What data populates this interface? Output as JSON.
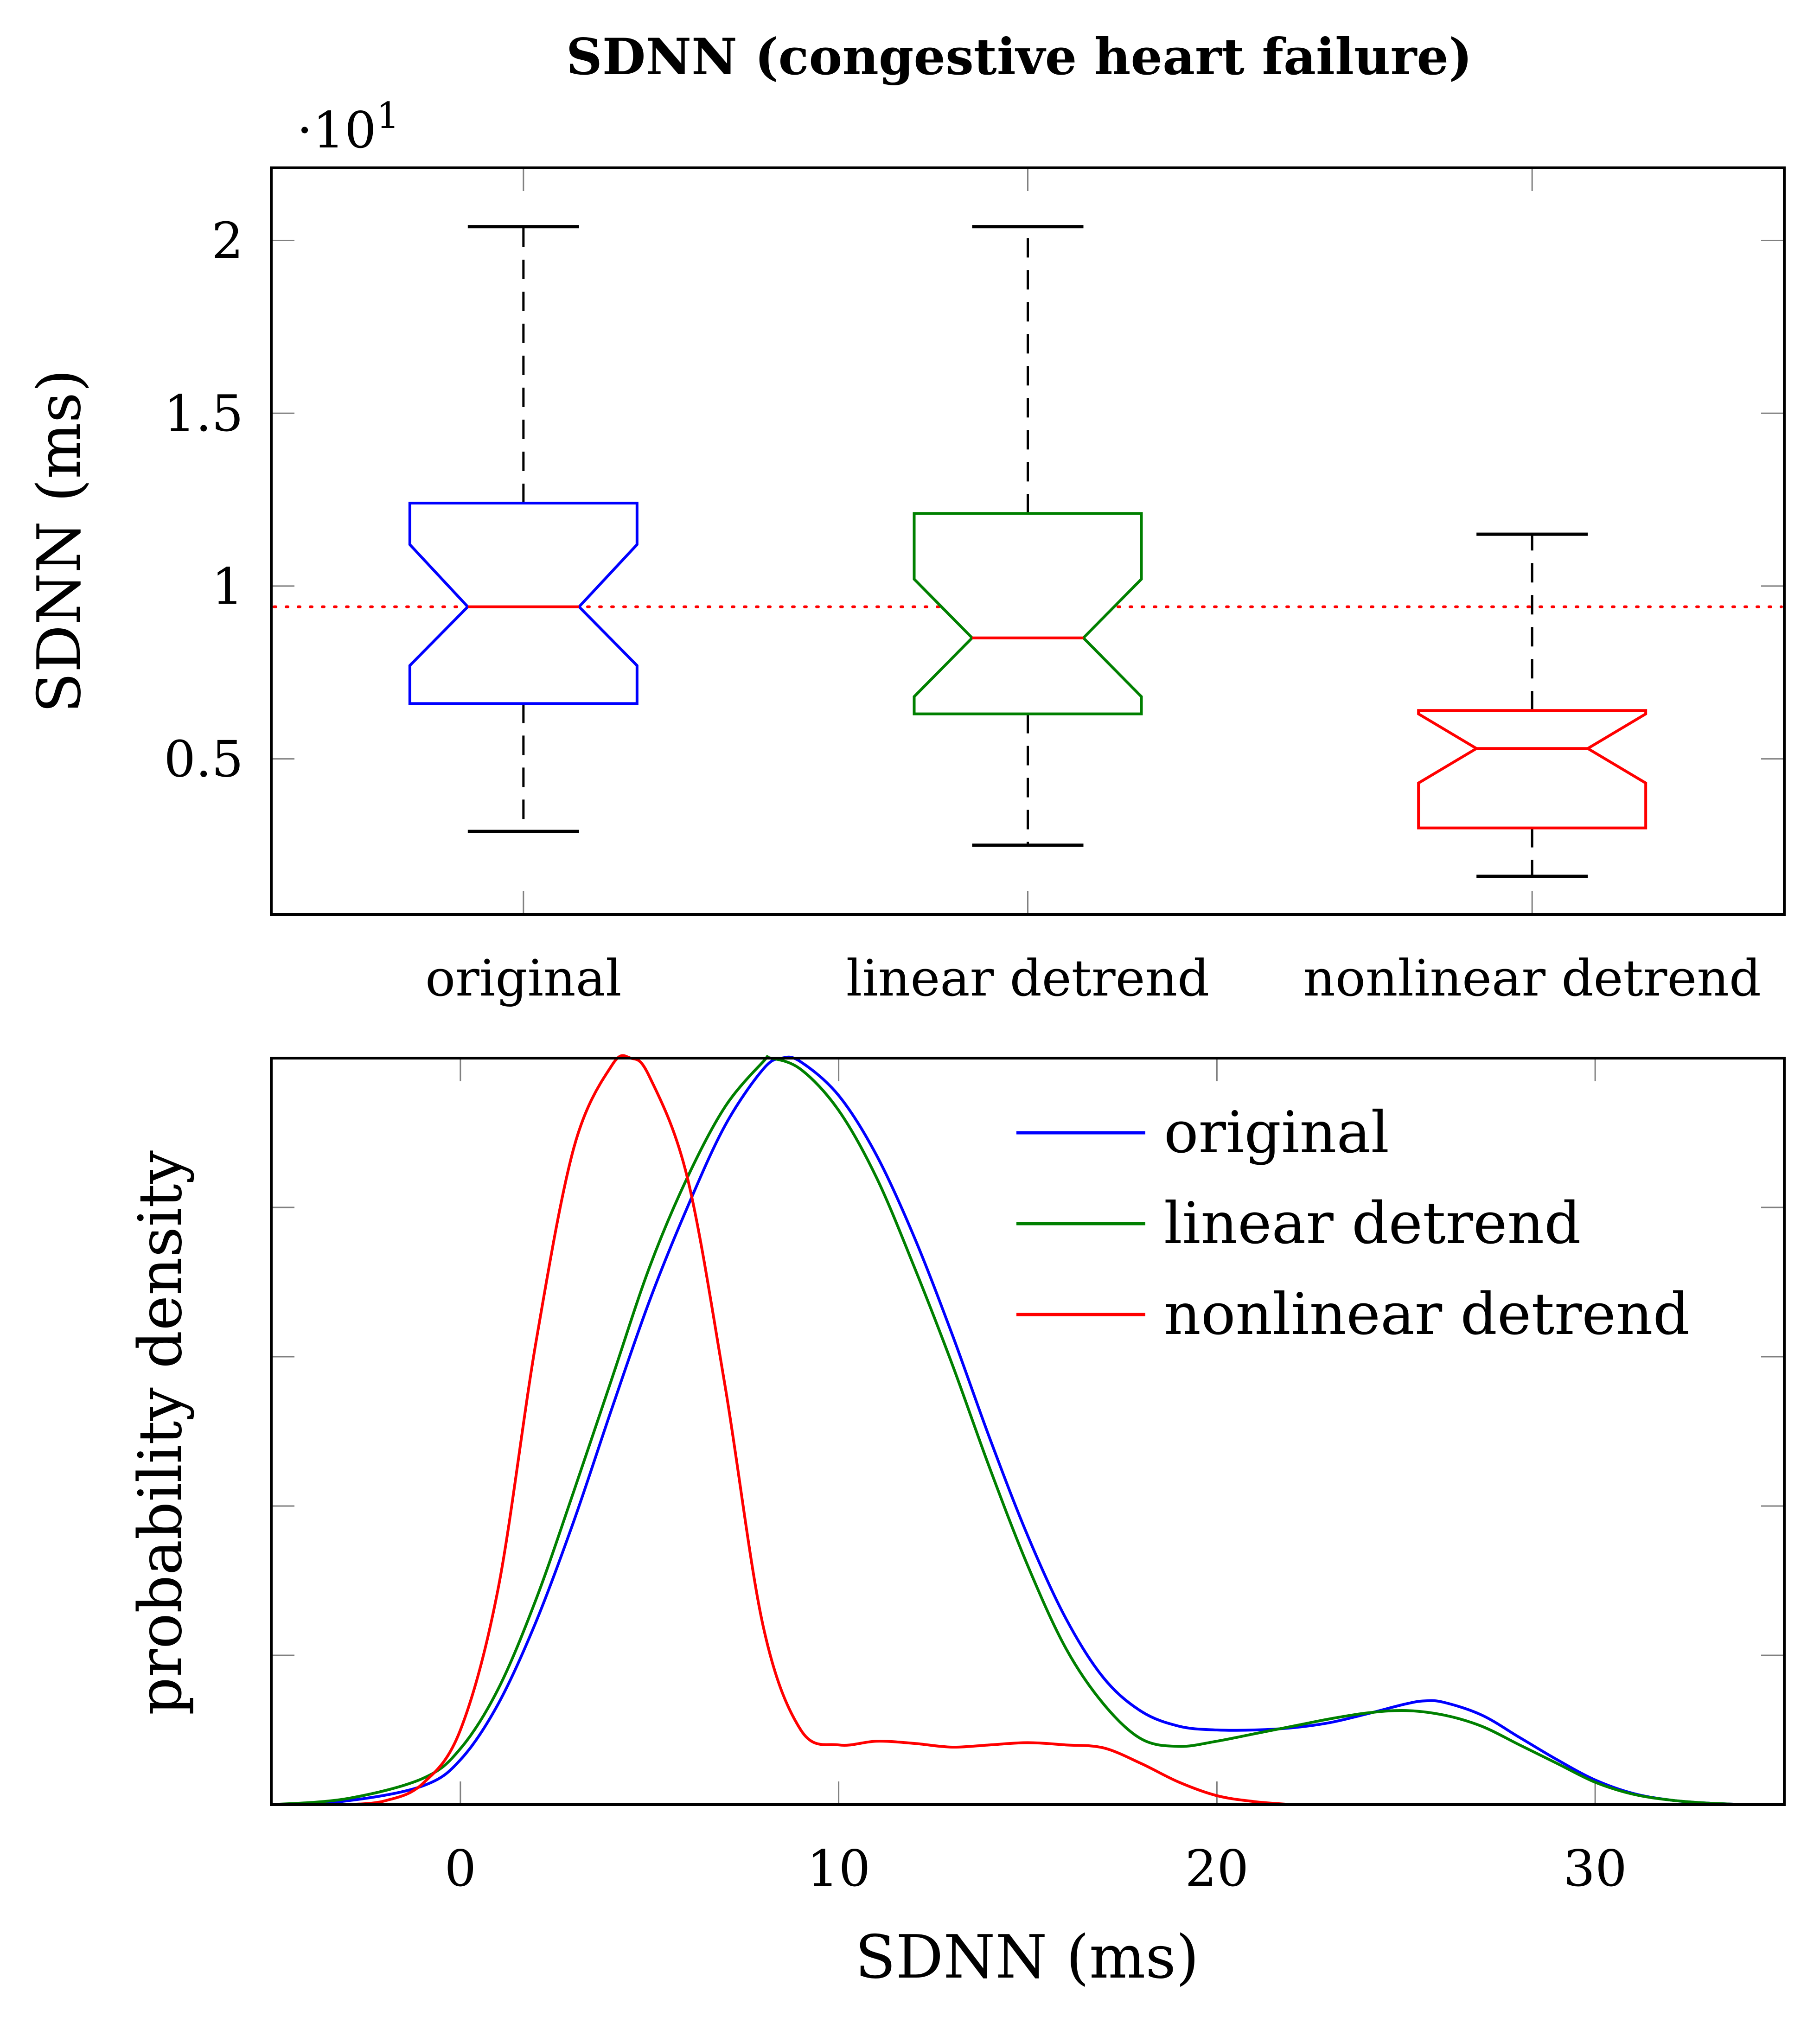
{
  "figure_title": "SDNN (congestive heart failure)",
  "chart_data": [
    {
      "type": "box",
      "title": "SDNN (congestive heart failure)",
      "ylabel": "SDNN (ms)",
      "y_scale_label": "·10",
      "y_scale_exponent": "1",
      "ylim": [
        0.05,
        2.21
      ],
      "yticks": [
        0.5,
        1,
        1.5,
        2
      ],
      "ytick_labels": [
        "0.5",
        "1",
        "1.5",
        "2"
      ],
      "reference_line": {
        "value": 0.94,
        "color": "#ff0000",
        "style": "dotted"
      },
      "boxes": [
        {
          "label": "original",
          "color": "#0000ff",
          "whisker_low": 0.29,
          "q1": 0.66,
          "notch_low": 0.77,
          "median": 0.94,
          "notch_high": 1.12,
          "q3": 1.24,
          "whisker_high": 2.04
        },
        {
          "label": "linear detrend",
          "color": "#008000",
          "whisker_low": 0.25,
          "q1": 0.63,
          "notch_low": 0.68,
          "median": 0.85,
          "notch_high": 1.02,
          "q3": 1.21,
          "whisker_high": 2.04
        },
        {
          "label": "nonlinear detrend",
          "color": "#ff0000",
          "whisker_low": 0.16,
          "q1": 0.3,
          "notch_low": 0.43,
          "median": 0.53,
          "notch_high": 0.63,
          "q3": 0.64,
          "whisker_high": 1.15
        }
      ]
    },
    {
      "type": "line",
      "xlabel": "SDNN (ms)",
      "ylabel": "probability density",
      "xlim": [
        -5,
        35
      ],
      "ylim": [
        0,
        1
      ],
      "xticks": [
        0,
        10,
        20,
        30
      ],
      "xtick_labels": [
        "0",
        "10",
        "20",
        "30"
      ],
      "yticks_unlabeled": [
        0.2,
        0.4,
        0.6,
        0.8
      ],
      "legend_position": "top-right",
      "series": [
        {
          "name": "original",
          "color": "#0000ff",
          "points": [
            [
              -5,
              0
            ],
            [
              -3,
              0.005
            ],
            [
              -1,
              0.025
            ],
            [
              0,
              0.06
            ],
            [
              1,
              0.135
            ],
            [
              2,
              0.245
            ],
            [
              3,
              0.38
            ],
            [
              4,
              0.53
            ],
            [
              5,
              0.675
            ],
            [
              6,
              0.8
            ],
            [
              7,
              0.91
            ],
            [
              8,
              0.985
            ],
            [
              8.5,
              1.0
            ],
            [
              9,
              0.995
            ],
            [
              10,
              0.95
            ],
            [
              11,
              0.87
            ],
            [
              12,
              0.76
            ],
            [
              13,
              0.63
            ],
            [
              14,
              0.49
            ],
            [
              15,
              0.36
            ],
            [
              16,
              0.25
            ],
            [
              17,
              0.17
            ],
            [
              18,
              0.125
            ],
            [
              19,
              0.105
            ],
            [
              20,
              0.1
            ],
            [
              21,
              0.1
            ],
            [
              22,
              0.103
            ],
            [
              23,
              0.11
            ],
            [
              24,
              0.122
            ],
            [
              25,
              0.135
            ],
            [
              25.5,
              0.139
            ],
            [
              26,
              0.137
            ],
            [
              27,
              0.12
            ],
            [
              28,
              0.09
            ],
            [
              29,
              0.06
            ],
            [
              30,
              0.033
            ],
            [
              31,
              0.015
            ],
            [
              32,
              0.006
            ],
            [
              33,
              0.002
            ],
            [
              34,
              0
            ]
          ]
        },
        {
          "name": "linear detrend",
          "color": "#008000",
          "points": [
            [
              -5,
              0
            ],
            [
              -3,
              0.008
            ],
            [
              -1,
              0.035
            ],
            [
              0,
              0.075
            ],
            [
              1,
              0.155
            ],
            [
              2,
              0.275
            ],
            [
              3,
              0.42
            ],
            [
              4,
              0.57
            ],
            [
              5,
              0.72
            ],
            [
              6,
              0.84
            ],
            [
              7,
              0.935
            ],
            [
              8,
              0.995
            ],
            [
              8.2,
              1.0
            ],
            [
              9,
              0.985
            ],
            [
              10,
              0.93
            ],
            [
              11,
              0.84
            ],
            [
              12,
              0.72
            ],
            [
              13,
              0.59
            ],
            [
              14,
              0.45
            ],
            [
              15,
              0.32
            ],
            [
              16,
              0.21
            ],
            [
              17,
              0.135
            ],
            [
              18,
              0.088
            ],
            [
              19,
              0.078
            ],
            [
              20,
              0.085
            ],
            [
              21,
              0.095
            ],
            [
              22,
              0.105
            ],
            [
              23,
              0.115
            ],
            [
              24,
              0.123
            ],
            [
              25,
              0.126
            ],
            [
              26,
              0.12
            ],
            [
              27,
              0.105
            ],
            [
              28,
              0.08
            ],
            [
              29,
              0.055
            ],
            [
              30,
              0.03
            ],
            [
              31,
              0.014
            ],
            [
              32,
              0.006
            ],
            [
              33,
              0.002
            ],
            [
              34,
              0
            ]
          ]
        },
        {
          "name": "nonlinear detrend",
          "color": "#ff0000",
          "points": [
            [
              -3,
              0
            ],
            [
              -2,
              0.005
            ],
            [
              -1,
              0.028
            ],
            [
              0,
              0.1
            ],
            [
              1,
              0.29
            ],
            [
              2,
              0.62
            ],
            [
              3,
              0.88
            ],
            [
              4,
              0.99
            ],
            [
              4.5,
              1.0
            ],
            [
              5,
              0.975
            ],
            [
              6,
              0.84
            ],
            [
              7,
              0.56
            ],
            [
              8,
              0.24
            ],
            [
              9,
              0.1
            ],
            [
              10,
              0.08
            ],
            [
              11,
              0.085
            ],
            [
              12,
              0.082
            ],
            [
              13,
              0.077
            ],
            [
              14,
              0.08
            ],
            [
              15,
              0.083
            ],
            [
              16,
              0.08
            ],
            [
              17,
              0.076
            ],
            [
              18,
              0.055
            ],
            [
              19,
              0.03
            ],
            [
              20,
              0.012
            ],
            [
              21,
              0.004
            ],
            [
              22,
              0
            ]
          ]
        }
      ]
    }
  ]
}
